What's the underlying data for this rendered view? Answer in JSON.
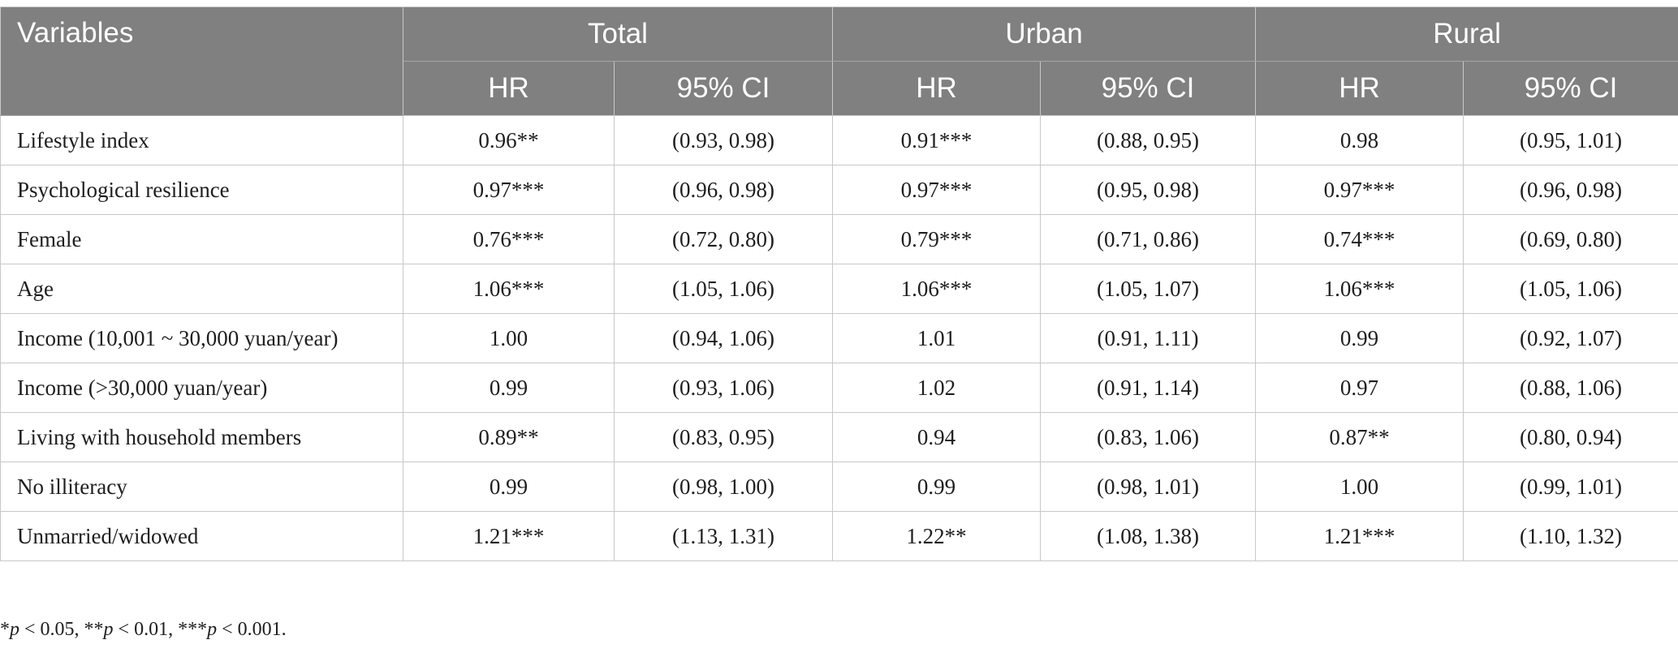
{
  "header": {
    "variables": "Variables",
    "groups": [
      "Total",
      "Urban",
      "Rural"
    ],
    "hr": "HR",
    "ci": "95% CI"
  },
  "rows": [
    {
      "variable": "Lifestyle index",
      "total_hr": "0.96**",
      "total_ci": "(0.93, 0.98)",
      "urban_hr": "0.91***",
      "urban_ci": "(0.88, 0.95)",
      "rural_hr": "0.98",
      "rural_ci": "(0.95, 1.01)"
    },
    {
      "variable": "Psychological resilience",
      "total_hr": "0.97***",
      "total_ci": "(0.96, 0.98)",
      "urban_hr": "0.97***",
      "urban_ci": "(0.95, 0.98)",
      "rural_hr": "0.97***",
      "rural_ci": "(0.96, 0.98)"
    },
    {
      "variable": "Female",
      "total_hr": "0.76***",
      "total_ci": "(0.72, 0.80)",
      "urban_hr": "0.79***",
      "urban_ci": "(0.71, 0.86)",
      "rural_hr": "0.74***",
      "rural_ci": "(0.69, 0.80)"
    },
    {
      "variable": "Age",
      "total_hr": "1.06***",
      "total_ci": "(1.05, 1.06)",
      "urban_hr": "1.06***",
      "urban_ci": "(1.05, 1.07)",
      "rural_hr": "1.06***",
      "rural_ci": "(1.05, 1.06)"
    },
    {
      "variable": "Income (10,001 ~ 30,000 yuan/year)",
      "total_hr": "1.00",
      "total_ci": "(0.94, 1.06)",
      "urban_hr": "1.01",
      "urban_ci": "(0.91, 1.11)",
      "rural_hr": "0.99",
      "rural_ci": "(0.92, 1.07)"
    },
    {
      "variable": "Income (>30,000 yuan/year)",
      "total_hr": "0.99",
      "total_ci": "(0.93, 1.06)",
      "urban_hr": "1.02",
      "urban_ci": "(0.91, 1.14)",
      "rural_hr": "0.97",
      "rural_ci": "(0.88, 1.06)"
    },
    {
      "variable": "Living with household members",
      "total_hr": "0.89**",
      "total_ci": "(0.83, 0.95)",
      "urban_hr": "0.94",
      "urban_ci": "(0.83, 1.06)",
      "rural_hr": "0.87**",
      "rural_ci": "(0.80, 0.94)"
    },
    {
      "variable": "No illiteracy",
      "total_hr": "0.99",
      "total_ci": "(0.98, 1.00)",
      "urban_hr": "0.99",
      "urban_ci": "(0.98, 1.01)",
      "rural_hr": "1.00",
      "rural_ci": "(0.99, 1.01)"
    },
    {
      "variable": "Unmarried/widowed",
      "total_hr": "1.21***",
      "total_ci": "(1.13, 1.31)",
      "urban_hr": "1.22**",
      "urban_ci": "(1.08, 1.38)",
      "rural_hr": "1.21***",
      "rural_ci": "(1.10, 1.32)"
    }
  ],
  "footnote": {
    "items": [
      {
        "stars": "*",
        "p": "p",
        "rest": " < 0.05, "
      },
      {
        "stars": "**",
        "p": "p",
        "rest": " < 0.01, "
      },
      {
        "stars": "***",
        "p": "p",
        "rest": " < 0.001."
      }
    ]
  }
}
